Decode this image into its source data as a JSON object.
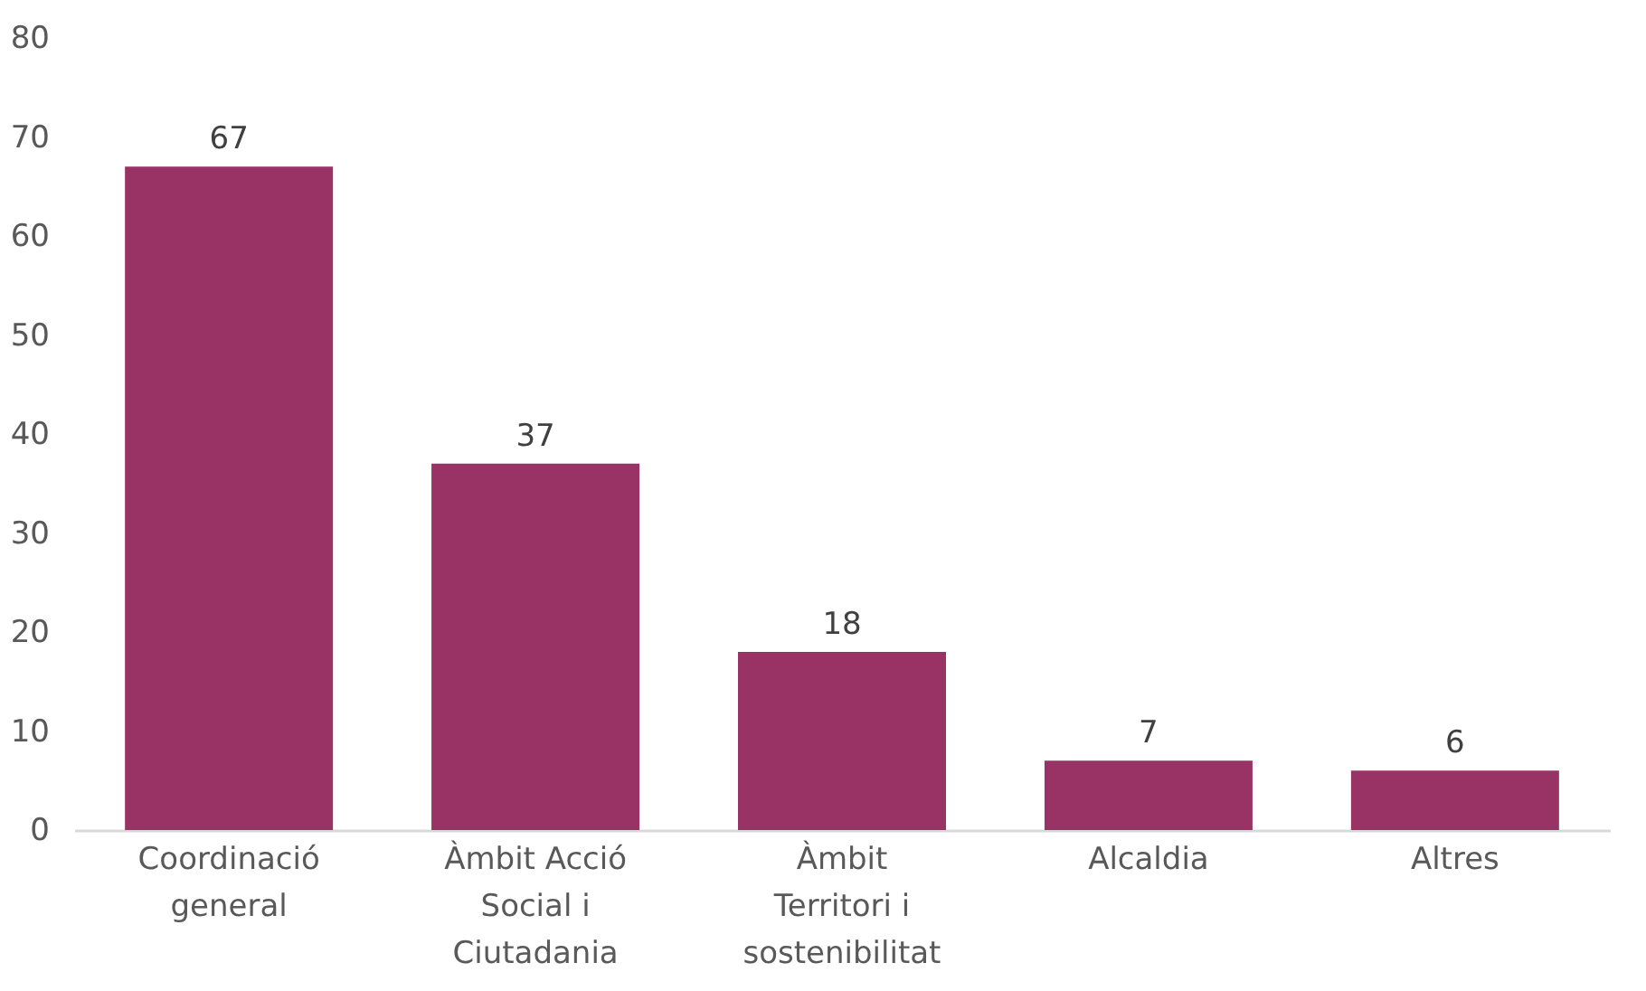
{
  "chart_data": {
    "type": "bar",
    "categories": [
      "Coordinació general",
      "Àmbit Acció Social i Ciutadania",
      "Àmbit Territori i sostenibilitat",
      "Alcaldia",
      "Altres"
    ],
    "values": [
      67,
      37,
      18,
      7,
      6
    ],
    "color": "#993366",
    "ylim": [
      0,
      80
    ],
    "yticks": [
      0,
      10,
      20,
      30,
      40,
      50,
      60,
      70,
      80
    ],
    "data_labels": true,
    "grid": false
  }
}
